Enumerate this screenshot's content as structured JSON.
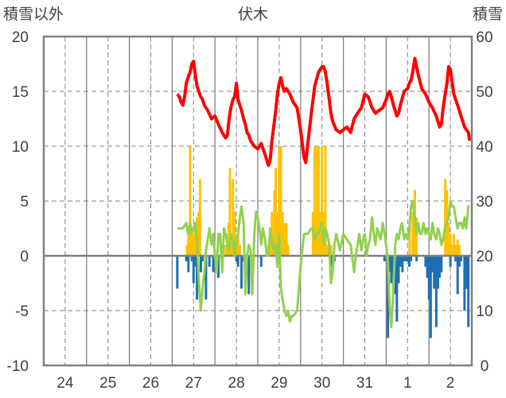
{
  "chart_data": {
    "type": "line",
    "title": "伏木",
    "y_left_label": "積雪以外",
    "y_right_label": "積雪",
    "y_left_range": [
      -10,
      20
    ],
    "y_left_ticks": [
      "20",
      "15",
      "10",
      "5",
      "0",
      "-5",
      "-10"
    ],
    "y_right_range": [
      0,
      60
    ],
    "y_right_ticks": [
      "60",
      "50",
      "40",
      "30",
      "20",
      "10",
      "0"
    ],
    "x_range_days": [
      23.5,
      33.5
    ],
    "x_ticks": [
      "24",
      "25",
      "26",
      "27",
      "28",
      "29",
      "30",
      "31",
      "1",
      "2"
    ],
    "grid": "dashed",
    "colors": {
      "snow_depth": "#ff0000",
      "temperature": "#92d050",
      "precip": "#ffc000",
      "snow_change_negative": "#1f6fb4",
      "frame": "#808080"
    },
    "series": [
      {
        "key": "snow_depth",
        "axis": "right",
        "kind": "line",
        "x": [
          26.62,
          26.67,
          26.71,
          26.75,
          26.79,
          26.83,
          26.87,
          26.92,
          26.96,
          27.0,
          27.04,
          27.08,
          27.12,
          27.17,
          27.21,
          27.25,
          27.29,
          27.33,
          27.42,
          27.5,
          27.58,
          27.67,
          27.75,
          27.79,
          27.83,
          27.87,
          27.92,
          27.96,
          28.0,
          28.04,
          28.08,
          28.12,
          28.17,
          28.21,
          28.25,
          28.29,
          28.33,
          28.42,
          28.5,
          28.58,
          28.67,
          28.75,
          28.79,
          28.83,
          28.92,
          28.96,
          29.0,
          29.04,
          29.08,
          29.12,
          29.17,
          29.25,
          29.33,
          29.42,
          29.5,
          29.54,
          29.58,
          29.62,
          29.67,
          29.75,
          29.83,
          29.92,
          30.0,
          30.04,
          30.08,
          30.12,
          30.17,
          30.21,
          30.25,
          30.33,
          30.42,
          30.5,
          30.58,
          30.67,
          30.75,
          30.83,
          30.92,
          31.0,
          31.08,
          31.17,
          31.25,
          31.33,
          31.42,
          31.5,
          31.54,
          31.58,
          31.62,
          31.67,
          31.71,
          31.75,
          31.79,
          31.83,
          31.92,
          32.0,
          32.04,
          32.08,
          32.12,
          32.17,
          32.25,
          32.33,
          32.42,
          32.5,
          32.58,
          32.67,
          32.75,
          32.79,
          32.83,
          32.88,
          32.92,
          32.96,
          33.0,
          33.08,
          33.17,
          33.25,
          33.33,
          33.42,
          33.45
        ],
        "values": [
          49.5,
          49.0,
          48.0,
          47.5,
          49.0,
          51.5,
          52.5,
          53.5,
          55.0,
          55.5,
          53.0,
          51.0,
          50.0,
          49.0,
          48.5,
          47.5,
          47.0,
          46.5,
          45.0,
          45.5,
          44.0,
          42.5,
          41.5,
          42.0,
          45.0,
          47.0,
          48.5,
          49.0,
          51.5,
          48.5,
          47.5,
          46.5,
          45.0,
          44.0,
          42.5,
          42.0,
          41.0,
          40.0,
          39.5,
          40.5,
          38.5,
          36.5,
          37.5,
          41.0,
          46.5,
          49.5,
          51.5,
          52.5,
          51.0,
          50.0,
          50.5,
          49.5,
          48.0,
          47.0,
          43.0,
          40.5,
          38.0,
          37.0,
          40.5,
          46.0,
          51.0,
          53.5,
          54.5,
          54.5,
          53.5,
          51.5,
          48.5,
          46.0,
          44.5,
          43.0,
          42.5,
          43.0,
          43.5,
          42.5,
          45.0,
          46.0,
          47.0,
          49.5,
          49.0,
          47.0,
          46.0,
          46.5,
          47.0,
          48.5,
          49.5,
          50.0,
          49.0,
          47.5,
          46.5,
          45.5,
          46.0,
          47.5,
          50.0,
          50.5,
          51.5,
          52.0,
          53.5,
          56.0,
          53.0,
          50.5,
          49.5,
          48.0,
          47.0,
          45.5,
          43.5,
          44.0,
          47.0,
          49.5,
          51.5,
          54.5,
          54.0,
          49.5,
          47.5,
          45.5,
          43.5,
          42.5,
          41.0
        ]
      },
      {
        "key": "temperature",
        "axis": "left",
        "kind": "line",
        "x": [
          26.62,
          26.67,
          26.75,
          26.83,
          26.87,
          26.92,
          26.96,
          27.0,
          27.04,
          27.08,
          27.12,
          27.17,
          27.21,
          27.25,
          27.29,
          27.33,
          27.37,
          27.42,
          27.46,
          27.5,
          27.54,
          27.58,
          27.62,
          27.67,
          27.71,
          27.75,
          27.79,
          27.83,
          27.87,
          27.92,
          27.96,
          28.0,
          28.04,
          28.08,
          28.12,
          28.17,
          28.21,
          28.25,
          28.29,
          28.33,
          28.37,
          28.42,
          28.46,
          28.5,
          28.54,
          28.58,
          28.62,
          28.67,
          28.71,
          28.75,
          28.79,
          28.83,
          28.87,
          28.92,
          28.96,
          29.0,
          29.04,
          29.08,
          29.12,
          29.17,
          29.21,
          29.25,
          29.29,
          29.33,
          29.42,
          29.5,
          29.58,
          29.67,
          29.75,
          29.79,
          29.83,
          29.87,
          29.92,
          29.96,
          30.0,
          30.04,
          30.08,
          30.12,
          30.17,
          30.21,
          30.25,
          30.29,
          30.33,
          30.42,
          30.5,
          30.58,
          30.67,
          30.75,
          30.79,
          30.83,
          30.87,
          30.92,
          30.96,
          31.0,
          31.04,
          31.08,
          31.12,
          31.17,
          31.21,
          31.25,
          31.29,
          31.33,
          31.37,
          31.42,
          31.46,
          31.5,
          31.54,
          31.58,
          31.62,
          31.67,
          31.71,
          31.75,
          31.79,
          31.83,
          31.87,
          31.92,
          31.96,
          32.0,
          32.04,
          32.08,
          32.12,
          32.17,
          32.21,
          32.25,
          32.29,
          32.33,
          32.37,
          32.42,
          32.46,
          32.5,
          32.54,
          32.58,
          32.62,
          32.67,
          32.71,
          32.75,
          32.79,
          32.83,
          32.87,
          32.92,
          32.96,
          33.0,
          33.04,
          33.08,
          33.12,
          33.17,
          33.21,
          33.25,
          33.29,
          33.33,
          33.37,
          33.42,
          33.45
        ],
        "values": [
          2.5,
          2.5,
          2.5,
          3.0,
          2.0,
          3.0,
          2.0,
          2.5,
          3.0,
          1.5,
          -2.0,
          -5.0,
          -3.0,
          -1.5,
          0.5,
          1.5,
          2.5,
          1.0,
          2.0,
          0.0,
          -1.5,
          2.0,
          2.0,
          -1.5,
          2.5,
          2.0,
          1.0,
          0.5,
          2.0,
          1.5,
          0.0,
          1.5,
          2.0,
          3.5,
          4.5,
          3.0,
          -3.5,
          0.0,
          1.0,
          0.5,
          -3.5,
          2.0,
          4.0,
          3.5,
          2.5,
          1.0,
          2.5,
          1.5,
          0.0,
          0.0,
          2.5,
          1.5,
          0.5,
          1.0,
          -1.0,
          2.0,
          -3.0,
          -4.0,
          -5.0,
          -5.5,
          -5.0,
          -6.0,
          -5.5,
          -5.5,
          -5.0,
          -1.0,
          2.0,
          2.0,
          2.5,
          2.5,
          1.5,
          2.0,
          2.0,
          2.5,
          3.0,
          1.0,
          2.5,
          2.0,
          1.0,
          -2.5,
          -1.5,
          1.0,
          2.0,
          0.5,
          2.0,
          1.5,
          1.0,
          -1.5,
          0.0,
          1.0,
          2.0,
          0.5,
          1.5,
          2.0,
          0.0,
          1.0,
          1.5,
          3.5,
          2.0,
          1.0,
          2.5,
          2.0,
          1.5,
          3.0,
          2.0,
          1.0,
          -0.5,
          -4.5,
          -6.5,
          -3.0,
          1.0,
          2.0,
          1.5,
          2.5,
          3.0,
          1.5,
          2.0,
          1.5,
          2.5,
          4.5,
          5.0,
          3.5,
          2.0,
          3.0,
          2.0,
          2.0,
          3.0,
          2.0,
          2.5,
          2.0,
          1.5,
          3.0,
          2.0,
          1.5,
          2.5,
          2.0,
          1.0,
          1.5,
          2.5,
          3.0,
          3.5,
          5.0,
          4.5,
          4.5,
          3.5,
          2.5,
          3.0,
          3.0,
          2.5,
          3.5,
          2.5,
          4.5,
          4.5
        ]
      },
      {
        "key": "precip",
        "axis": "left",
        "kind": "bar",
        "x": [
          26.85,
          26.88,
          26.92,
          26.96,
          27.0,
          27.04,
          27.08,
          27.12,
          27.15,
          27.75,
          27.79,
          27.82,
          27.85,
          27.88,
          27.92,
          27.96,
          28.0,
          28.04,
          28.08,
          28.75,
          28.79,
          28.83,
          28.86,
          28.89,
          28.92,
          28.96,
          29.0,
          29.04,
          29.08,
          29.12,
          29.17,
          29.21,
          29.79,
          29.83,
          29.86,
          29.89,
          29.92,
          29.96,
          30.0,
          30.04,
          30.08,
          30.12,
          30.17,
          30.21,
          32.05,
          32.12,
          32.17,
          32.21,
          32.88,
          32.92,
          32.96,
          33.0,
          33.04,
          33.08,
          33.12,
          33.17,
          33.21
        ],
        "values": [
          1.0,
          2.0,
          10.0,
          2.0,
          2.0,
          3.0,
          3.5,
          4.0,
          7.0,
          1.0,
          2.0,
          3.0,
          8.0,
          2.0,
          7.0,
          4.0,
          1.0,
          2.0,
          1.0,
          1.0,
          2.0,
          4.0,
          2.0,
          6.0,
          8.0,
          4.0,
          10.0,
          10.0,
          4.0,
          3.0,
          3.0,
          1.0,
          4.0,
          10.0,
          3.5,
          10.0,
          10.0,
          4.0,
          10.0,
          4.0,
          10.0,
          1.0,
          1.0,
          1.0,
          3.0,
          4.0,
          6.0,
          3.5,
          7.0,
          6.0,
          3.0,
          2.0,
          1.0,
          2.0,
          1.0,
          1.5,
          1.0
        ]
      },
      {
        "key": "snow_change_negative",
        "axis": "left",
        "kind": "bar",
        "x": [
          26.62,
          26.83,
          26.88,
          26.96,
          27.0,
          27.04,
          27.08,
          27.17,
          27.21,
          27.29,
          27.37,
          27.46,
          27.58,
          28.0,
          28.04,
          28.12,
          28.17,
          28.21,
          28.29,
          28.33,
          28.58,
          30.21,
          30.29,
          31.46,
          31.54,
          31.58,
          31.62,
          31.67,
          31.71,
          31.75,
          31.79,
          31.83,
          31.88,
          31.92,
          31.96,
          32.0,
          32.04,
          32.08,
          32.21,
          32.42,
          32.46,
          32.5,
          32.54,
          32.58,
          32.62,
          32.67,
          32.71,
          32.75,
          32.79,
          33.0,
          33.12,
          33.17,
          33.21,
          33.25,
          33.33,
          33.37,
          33.42
        ],
        "values": [
          -3.0,
          -0.5,
          -1.5,
          -0.5,
          -2.5,
          -1.0,
          -4.0,
          -1.5,
          -0.5,
          -4.0,
          -1.0,
          -1.5,
          -2.0,
          -0.5,
          -1.0,
          -3.0,
          -0.5,
          -1.0,
          -3.5,
          -0.5,
          -1.0,
          -1.0,
          -0.5,
          -0.5,
          -7.5,
          -1.5,
          -2.5,
          -3.0,
          -3.5,
          -6.0,
          -2.5,
          -1.0,
          -1.5,
          -0.5,
          -0.5,
          -0.5,
          -1.0,
          -0.5,
          -0.5,
          -1.0,
          -2.0,
          -4.0,
          -7.5,
          -1.5,
          -3.0,
          -6.5,
          -3.0,
          -2.0,
          -1.5,
          -1.0,
          -0.5,
          -3.5,
          -1.0,
          -0.5,
          -5.0,
          -3.0,
          -6.5
        ]
      }
    ]
  }
}
